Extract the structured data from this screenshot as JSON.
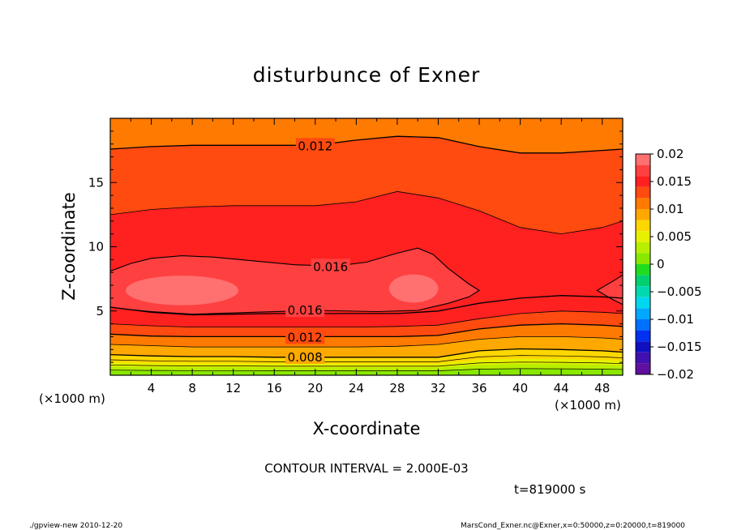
{
  "chart_data": {
    "type": "heatmap",
    "title": "disturbunce of Exner",
    "xlabel": "X-coordinate",
    "ylabel": "Z-coordinate",
    "x_unit_left": "(×1000 m)",
    "x_unit_right": "(×1000 m)",
    "xlim": [
      0,
      50
    ],
    "ylim": [
      0,
      20
    ],
    "x_ticks": [
      4,
      8,
      12,
      16,
      20,
      24,
      28,
      32,
      36,
      40,
      44,
      48
    ],
    "y_ticks": [
      5,
      10,
      15
    ],
    "colorbar": {
      "min": -0.02,
      "max": 0.02,
      "tick_values": [
        0.02,
        0.015,
        0.01,
        0.005,
        0,
        -0.005,
        -0.01,
        -0.015,
        -0.02
      ],
      "tick_labels": [
        "0.02",
        "0.015",
        "0.01",
        "0.005",
        "0",
        "−0.005",
        "−0.01",
        "−0.015",
        "−0.02"
      ],
      "levels": [
        {
          "from": 0.018,
          "to": 0.02,
          "color": "#ff7070"
        },
        {
          "from": 0.016,
          "to": 0.018,
          "color": "#ff4040"
        },
        {
          "from": 0.014,
          "to": 0.016,
          "color": "#ff2020"
        },
        {
          "from": 0.012,
          "to": 0.014,
          "color": "#ff4a10"
        },
        {
          "from": 0.01,
          "to": 0.012,
          "color": "#ff7a00"
        },
        {
          "from": 0.008,
          "to": 0.01,
          "color": "#ffa800"
        },
        {
          "from": 0.006,
          "to": 0.008,
          "color": "#ffd700"
        },
        {
          "from": 0.004,
          "to": 0.006,
          "color": "#e6f000"
        },
        {
          "from": 0.002,
          "to": 0.004,
          "color": "#b8ee00"
        },
        {
          "from": 0.0,
          "to": 0.002,
          "color": "#88e800"
        },
        {
          "from": -0.002,
          "to": 0.0,
          "color": "#20dc20"
        },
        {
          "from": -0.004,
          "to": -0.002,
          "color": "#00d070"
        },
        {
          "from": -0.006,
          "to": -0.004,
          "color": "#00d8b0"
        },
        {
          "from": -0.008,
          "to": -0.006,
          "color": "#00d8f0"
        },
        {
          "from": -0.01,
          "to": -0.008,
          "color": "#00a8ff"
        },
        {
          "from": -0.012,
          "to": -0.01,
          "color": "#0070ff"
        },
        {
          "from": -0.014,
          "to": -0.012,
          "color": "#0030f0"
        },
        {
          "from": -0.016,
          "to": -0.014,
          "color": "#1010c0"
        },
        {
          "from": -0.018,
          "to": -0.016,
          "color": "#4010b0"
        },
        {
          "from": -0.02,
          "to": -0.018,
          "color": "#6010a0"
        }
      ]
    },
    "contour_interval": 0.002,
    "contour_labels": [
      {
        "text": "0.012",
        "level": 0.012,
        "x": 20,
        "z": 17.9
      },
      {
        "text": "0.016",
        "level": 0.016,
        "x": 21.5,
        "z": 8.5
      },
      {
        "text": "0.016",
        "level": 0.016,
        "x": 19,
        "z": 5.1
      },
      {
        "text": "0.012",
        "level": 0.012,
        "x": 19,
        "z": 3.0
      },
      {
        "text": "0.008",
        "level": 0.008,
        "x": 19,
        "z": 1.45
      }
    ]
  },
  "text": {
    "contour_interval_text": "CONTOUR INTERVAL = 2.000E-03",
    "time_text": "t=819000 s",
    "footer_left": "./gpview-new   2010-12-20",
    "footer_right": "MarsCond_Exner.nc@Exner,x=0:50000,z=0:20000,t=819000"
  }
}
